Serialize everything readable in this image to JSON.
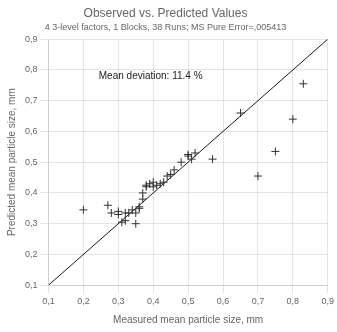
{
  "chart_data": {
    "type": "scatter",
    "title": "Observed vs. Predicted Values",
    "subtitle": "4 3-level factors, 1 Blocks, 38 Runs; MS Pure Error=,005413",
    "xlabel": "Measured mean particle size, mm",
    "ylabel": "Predicted mean particle size, mm",
    "annotation": "Mean deviation: 11.4 %",
    "xlim": [
      0.1,
      0.9
    ],
    "ylim": [
      0.1,
      0.9
    ],
    "xticks": [
      {
        "value": 0.1,
        "label": "0,1"
      },
      {
        "value": 0.2,
        "label": "0,2"
      },
      {
        "value": 0.3,
        "label": "0,3"
      },
      {
        "value": 0.4,
        "label": "0,4"
      },
      {
        "value": 0.5,
        "label": "0,5"
      },
      {
        "value": 0.6,
        "label": "0,6"
      },
      {
        "value": 0.7,
        "label": "0,7"
      },
      {
        "value": 0.8,
        "label": "0,8"
      },
      {
        "value": 0.9,
        "label": "0,9"
      }
    ],
    "yticks": [
      {
        "value": 0.1,
        "label": "0,1"
      },
      {
        "value": 0.2,
        "label": "0,2"
      },
      {
        "value": 0.3,
        "label": "0,3"
      },
      {
        "value": 0.4,
        "label": "0,4"
      },
      {
        "value": 0.5,
        "label": "0,5"
      },
      {
        "value": 0.6,
        "label": "0,6"
      },
      {
        "value": 0.7,
        "label": "0,7"
      },
      {
        "value": 0.8,
        "label": "0,8"
      },
      {
        "value": 0.9,
        "label": "0,9"
      }
    ],
    "grid": true,
    "series": [
      {
        "type": "line",
        "line_style": "solid",
        "color": "#1a1a1a",
        "x": [
          0.1,
          0.9
        ],
        "values": [
          0.1,
          0.9
        ]
      },
      {
        "type": "scatter",
        "marker": "plus",
        "color": "#333333",
        "x": [
          0.2,
          0.27,
          0.28,
          0.3,
          0.3,
          0.31,
          0.32,
          0.32,
          0.33,
          0.34,
          0.35,
          0.35,
          0.36,
          0.36,
          0.37,
          0.37,
          0.38,
          0.38,
          0.39,
          0.4,
          0.4,
          0.41,
          0.42,
          0.43,
          0.44,
          0.45,
          0.46,
          0.48,
          0.5,
          0.5,
          0.51,
          0.52,
          0.57,
          0.65,
          0.7,
          0.75,
          0.8,
          0.83
        ],
        "values": [
          0.345,
          0.36,
          0.335,
          0.34,
          0.33,
          0.305,
          0.31,
          0.335,
          0.335,
          0.345,
          0.335,
          0.3,
          0.355,
          0.35,
          0.38,
          0.4,
          0.42,
          0.425,
          0.43,
          0.435,
          0.42,
          0.425,
          0.43,
          0.435,
          0.455,
          0.46,
          0.475,
          0.5,
          0.525,
          0.52,
          0.51,
          0.53,
          0.51,
          0.66,
          0.455,
          0.535,
          0.64,
          0.755
        ]
      }
    ]
  }
}
